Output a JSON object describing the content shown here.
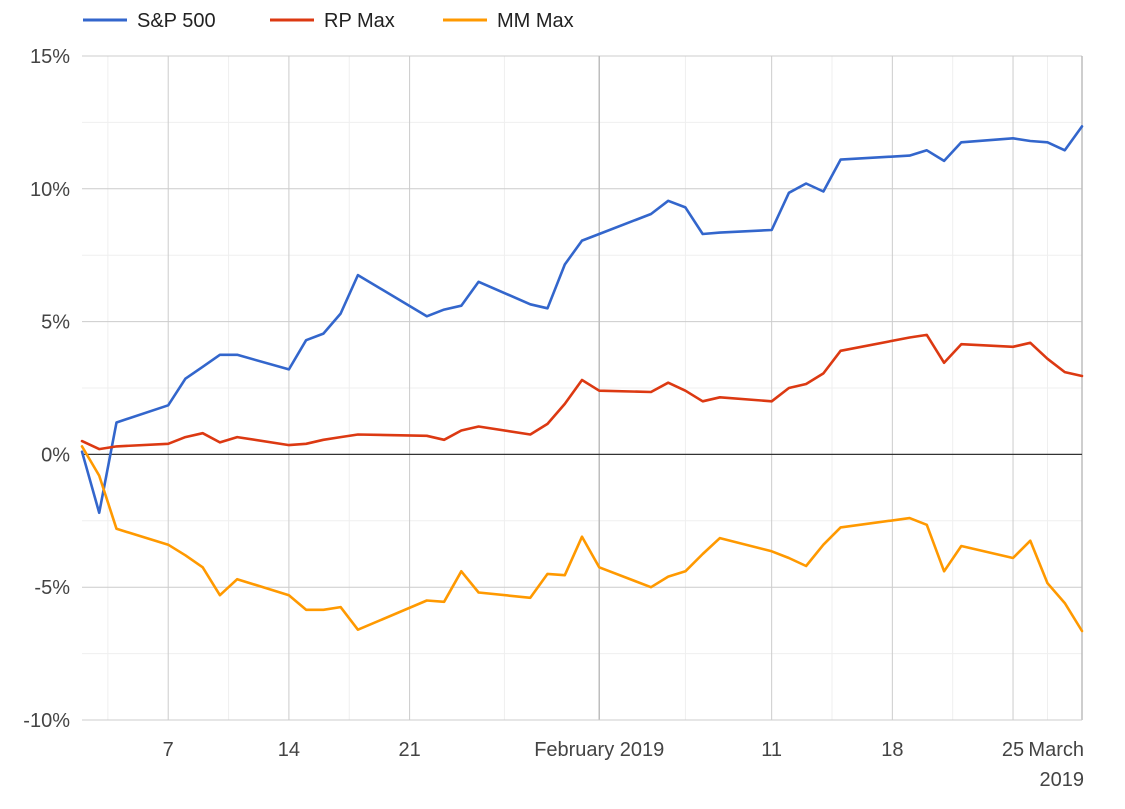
{
  "chart_data": {
    "type": "line",
    "title": "",
    "xlabel": "",
    "ylabel": "",
    "legend_position": "top-left",
    "grid": true,
    "x_range": [
      "2019-01-02",
      "2019-03-01"
    ],
    "ylim": [
      -10,
      15
    ],
    "y_ticks": [
      {
        "value": 15,
        "label": "15%"
      },
      {
        "value": 10,
        "label": "10%"
      },
      {
        "value": 5,
        "label": "5%"
      },
      {
        "value": 0,
        "label": "0%"
      },
      {
        "value": -5,
        "label": "-5%"
      },
      {
        "value": -10,
        "label": "-10%"
      }
    ],
    "x_ticks": [
      {
        "date": "2019-01-07",
        "label": "7"
      },
      {
        "date": "2019-01-14",
        "label": "14"
      },
      {
        "date": "2019-01-21",
        "label": "21"
      },
      {
        "date": "2019-02-01",
        "label": "February 2019"
      },
      {
        "date": "2019-02-11",
        "label": "11"
      },
      {
        "date": "2019-02-18",
        "label": "18"
      },
      {
        "date": "2019-02-25",
        "label": "25"
      },
      {
        "date": "2019-03-01",
        "label": "March 2019"
      }
    ],
    "series": [
      {
        "name": "S&P 500",
        "color": "#3366cc",
        "points": [
          [
            "2019-01-02",
            0.1
          ],
          [
            "2019-01-03",
            -2.2
          ],
          [
            "2019-01-04",
            1.2
          ],
          [
            "2019-01-07",
            1.85
          ],
          [
            "2019-01-08",
            2.85
          ],
          [
            "2019-01-09",
            3.3
          ],
          [
            "2019-01-10",
            3.75
          ],
          [
            "2019-01-11",
            3.75
          ],
          [
            "2019-01-14",
            3.2
          ],
          [
            "2019-01-15",
            4.3
          ],
          [
            "2019-01-16",
            4.55
          ],
          [
            "2019-01-17",
            5.3
          ],
          [
            "2019-01-18",
            6.75
          ],
          [
            "2019-01-22",
            5.2
          ],
          [
            "2019-01-23",
            5.45
          ],
          [
            "2019-01-24",
            5.6
          ],
          [
            "2019-01-25",
            6.5
          ],
          [
            "2019-01-28",
            5.65
          ],
          [
            "2019-01-29",
            5.5
          ],
          [
            "2019-01-30",
            7.15
          ],
          [
            "2019-01-31",
            8.05
          ],
          [
            "2019-02-01",
            8.3
          ],
          [
            "2019-02-04",
            9.05
          ],
          [
            "2019-02-05",
            9.55
          ],
          [
            "2019-02-06",
            9.3
          ],
          [
            "2019-02-07",
            8.3
          ],
          [
            "2019-02-08",
            8.35
          ],
          [
            "2019-02-11",
            8.45
          ],
          [
            "2019-02-12",
            9.85
          ],
          [
            "2019-02-13",
            10.2
          ],
          [
            "2019-02-14",
            9.9
          ],
          [
            "2019-02-15",
            11.1
          ],
          [
            "2019-02-19",
            11.25
          ],
          [
            "2019-02-20",
            11.45
          ],
          [
            "2019-02-21",
            11.05
          ],
          [
            "2019-02-22",
            11.75
          ],
          [
            "2019-02-25",
            11.9
          ],
          [
            "2019-02-26",
            11.8
          ],
          [
            "2019-02-27",
            11.75
          ],
          [
            "2019-02-28",
            11.45
          ],
          [
            "2019-03-01",
            12.35
          ]
        ]
      },
      {
        "name": "RP Max",
        "color": "#dc3912",
        "points": [
          [
            "2019-01-02",
            0.5
          ],
          [
            "2019-01-03",
            0.2
          ],
          [
            "2019-01-04",
            0.3
          ],
          [
            "2019-01-07",
            0.4
          ],
          [
            "2019-01-08",
            0.65
          ],
          [
            "2019-01-09",
            0.8
          ],
          [
            "2019-01-10",
            0.45
          ],
          [
            "2019-01-11",
            0.65
          ],
          [
            "2019-01-14",
            0.35
          ],
          [
            "2019-01-15",
            0.4
          ],
          [
            "2019-01-16",
            0.55
          ],
          [
            "2019-01-17",
            0.65
          ],
          [
            "2019-01-18",
            0.75
          ],
          [
            "2019-01-22",
            0.7
          ],
          [
            "2019-01-23",
            0.55
          ],
          [
            "2019-01-24",
            0.9
          ],
          [
            "2019-01-25",
            1.05
          ],
          [
            "2019-01-28",
            0.75
          ],
          [
            "2019-01-29",
            1.15
          ],
          [
            "2019-01-30",
            1.9
          ],
          [
            "2019-01-31",
            2.8
          ],
          [
            "2019-02-01",
            2.4
          ],
          [
            "2019-02-04",
            2.35
          ],
          [
            "2019-02-05",
            2.7
          ],
          [
            "2019-02-06",
            2.4
          ],
          [
            "2019-02-07",
            2.0
          ],
          [
            "2019-02-08",
            2.15
          ],
          [
            "2019-02-11",
            2.0
          ],
          [
            "2019-02-12",
            2.5
          ],
          [
            "2019-02-13",
            2.65
          ],
          [
            "2019-02-14",
            3.05
          ],
          [
            "2019-02-15",
            3.9
          ],
          [
            "2019-02-19",
            4.4
          ],
          [
            "2019-02-20",
            4.5
          ],
          [
            "2019-02-21",
            3.45
          ],
          [
            "2019-02-22",
            4.15
          ],
          [
            "2019-02-25",
            4.05
          ],
          [
            "2019-02-26",
            4.2
          ],
          [
            "2019-02-27",
            3.6
          ],
          [
            "2019-02-28",
            3.1
          ],
          [
            "2019-03-01",
            2.95
          ]
        ]
      },
      {
        "name": "MM Max",
        "color": "#ff9900",
        "points": [
          [
            "2019-01-02",
            0.3
          ],
          [
            "2019-01-03",
            -0.8
          ],
          [
            "2019-01-04",
            -2.8
          ],
          [
            "2019-01-07",
            -3.4
          ],
          [
            "2019-01-08",
            -3.8
          ],
          [
            "2019-01-09",
            -4.25
          ],
          [
            "2019-01-10",
            -5.3
          ],
          [
            "2019-01-11",
            -4.7
          ],
          [
            "2019-01-14",
            -5.3
          ],
          [
            "2019-01-15",
            -5.85
          ],
          [
            "2019-01-16",
            -5.85
          ],
          [
            "2019-01-17",
            -5.75
          ],
          [
            "2019-01-18",
            -6.6
          ],
          [
            "2019-01-22",
            -5.5
          ],
          [
            "2019-01-23",
            -5.55
          ],
          [
            "2019-01-24",
            -4.4
          ],
          [
            "2019-01-25",
            -5.2
          ],
          [
            "2019-01-28",
            -5.4
          ],
          [
            "2019-01-29",
            -4.5
          ],
          [
            "2019-01-30",
            -4.55
          ],
          [
            "2019-01-31",
            -3.1
          ],
          [
            "2019-02-01",
            -4.25
          ],
          [
            "2019-02-04",
            -5.0
          ],
          [
            "2019-02-05",
            -4.6
          ],
          [
            "2019-02-06",
            -4.4
          ],
          [
            "2019-02-07",
            -3.75
          ],
          [
            "2019-02-08",
            -3.15
          ],
          [
            "2019-02-11",
            -3.65
          ],
          [
            "2019-02-12",
            -3.9
          ],
          [
            "2019-02-13",
            -4.2
          ],
          [
            "2019-02-14",
            -3.4
          ],
          [
            "2019-02-15",
            -2.75
          ],
          [
            "2019-02-19",
            -2.4
          ],
          [
            "2019-02-20",
            -2.65
          ],
          [
            "2019-02-21",
            -4.4
          ],
          [
            "2019-02-22",
            -3.45
          ],
          [
            "2019-02-25",
            -3.9
          ],
          [
            "2019-02-26",
            -3.25
          ],
          [
            "2019-02-27",
            -4.85
          ],
          [
            "2019-02-28",
            -5.6
          ],
          [
            "2019-03-01",
            -6.65
          ]
        ]
      }
    ]
  }
}
